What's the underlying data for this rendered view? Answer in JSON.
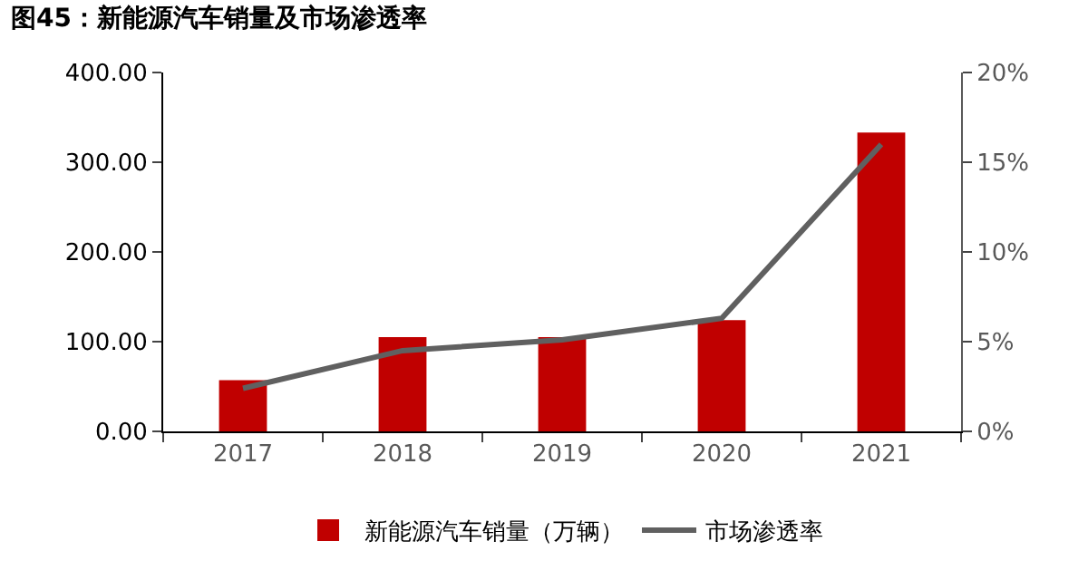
{
  "chart_data": {
    "type": "bar",
    "title": "图45：新能源汽车销量及市场渗透率",
    "categories": [
      "2017",
      "2018",
      "2019",
      "2020",
      "2021"
    ],
    "series": [
      {
        "name": "新能源汽车销量（万辆）",
        "color": "#c00000",
        "values": [
          57,
          105,
          105,
          124,
          333
        ]
      },
      {
        "name": "市场渗透率",
        "type": "line",
        "axis": "y2",
        "color": "#606060",
        "values": [
          2.4,
          4.5,
          5.1,
          6.3,
          16.0
        ]
      }
    ],
    "ylim": [
      0,
      400
    ],
    "yticks": [
      {
        "value": 0,
        "label": "0.00"
      },
      {
        "value": 100,
        "label": "100.00"
      },
      {
        "value": 200,
        "label": "200.00"
      },
      {
        "value": 300,
        "label": "300.00"
      },
      {
        "value": 400,
        "label": "400.00"
      }
    ],
    "y2lim": [
      0,
      20
    ],
    "y2ticks": [
      {
        "value": 0,
        "label": "0%"
      },
      {
        "value": 5,
        "label": "5%"
      },
      {
        "value": 10,
        "label": "10%"
      },
      {
        "value": 15,
        "label": "15%"
      },
      {
        "value": 20,
        "label": "20%"
      }
    ],
    "grid": false,
    "legend": "bottom",
    "marker": "none",
    "line_style": "solid"
  }
}
